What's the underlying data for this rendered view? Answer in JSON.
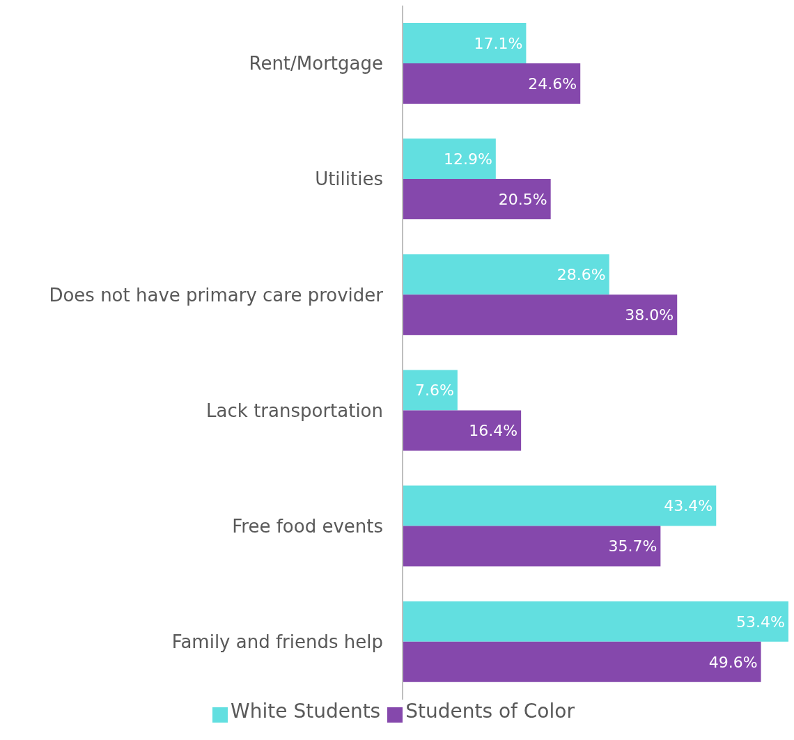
{
  "chart_data": {
    "type": "bar",
    "orientation": "horizontal",
    "categories": [
      "Rent/Mortgage",
      "Utilities",
      "Does not have primary care provider",
      "Lack transportation",
      "Free food events",
      "Family and friends help"
    ],
    "series": [
      {
        "name": "White Students",
        "color": "#62dfe0",
        "values": [
          17.1,
          12.9,
          28.6,
          7.6,
          43.4,
          53.4
        ],
        "value_labels": [
          "17.1%",
          "12.9%",
          "28.6%",
          "7.6%",
          "43.4%",
          "53.4%"
        ]
      },
      {
        "name": "Students of Color",
        "color": "#8548ac",
        "values": [
          24.6,
          20.5,
          38.0,
          16.4,
          35.7,
          49.6
        ],
        "value_labels": [
          "24.6%",
          "20.5%",
          "38.0%",
          "16.4%",
          "35.7%",
          "49.6%"
        ]
      }
    ],
    "xlim": [
      0,
      53.4
    ],
    "legend": "bottom"
  }
}
